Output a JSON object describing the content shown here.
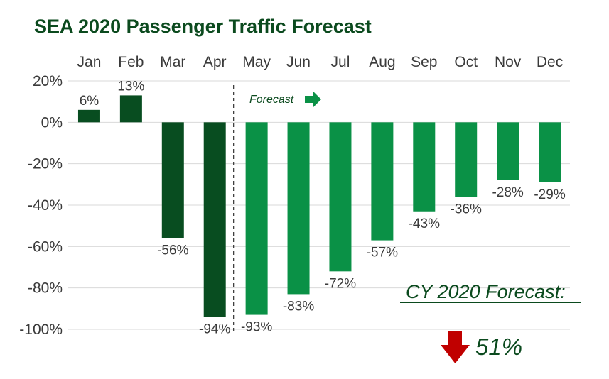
{
  "chart_data": {
    "type": "bar",
    "title": "SEA 2020 Passenger Traffic Forecast",
    "categories": [
      "Jan",
      "Feb",
      "Mar",
      "Apr",
      "May",
      "Jun",
      "Jul",
      "Aug",
      "Sep",
      "Oct",
      "Nov",
      "Dec"
    ],
    "values": [
      6,
      13,
      -56,
      -94,
      -93,
      -83,
      -72,
      -57,
      -43,
      -36,
      -28,
      -29
    ],
    "value_labels": [
      "6%",
      "13%",
      "-56%",
      "-94%",
      "-93%",
      "-83%",
      "-72%",
      "-57%",
      "-43%",
      "-36%",
      "-28%",
      "-29%"
    ],
    "ylim": [
      -100,
      20
    ],
    "yticks": [
      20,
      0,
      -20,
      -40,
      -60,
      -80,
      -100
    ],
    "ytick_labels": [
      "20%",
      "0%",
      "-20%",
      "-40%",
      "-60%",
      "-80%",
      "-100%"
    ],
    "grid": true,
    "forecast_start_index": 4,
    "forecast_annotation": "Forecast",
    "summary_label": "CY 2020 Forecast:",
    "summary_value": "51%",
    "summary_direction": "down"
  },
  "colors": {
    "title": "#0b4a1e",
    "actual_bar": "#084d20",
    "forecast_bar": "#0a9146",
    "grid": "#d9d9d9",
    "divider": "#333333",
    "down_arrow": "#c00000",
    "summary_text": "#0b4a1e"
  }
}
